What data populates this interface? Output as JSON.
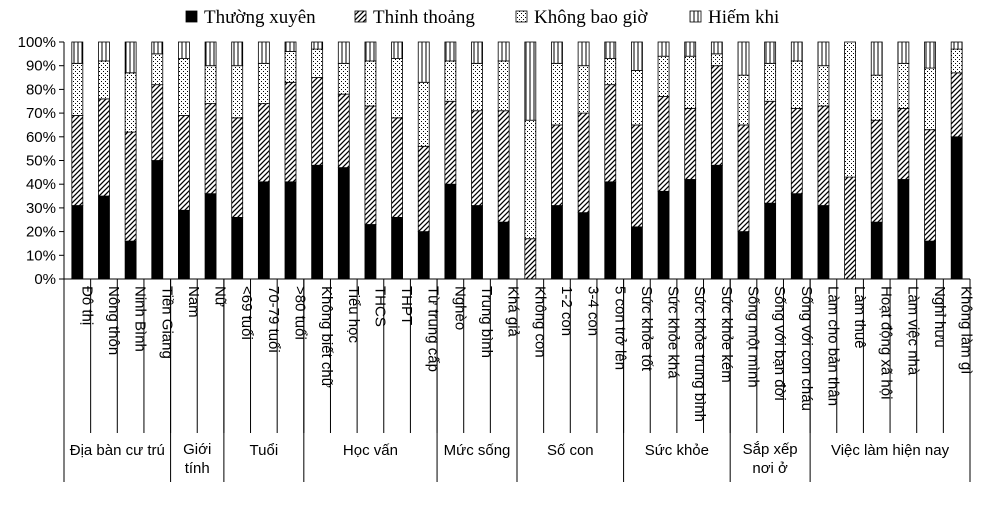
{
  "chart_data": {
    "type": "bar",
    "stacked": true,
    "percent": true,
    "title": "",
    "xlabel": "",
    "ylabel": "",
    "ylim": [
      0,
      100
    ],
    "yticks": [
      "0%",
      "10%",
      "20%",
      "30%",
      "40%",
      "50%",
      "60%",
      "70%",
      "80%",
      "90%",
      "100%"
    ],
    "grid": false,
    "legend": "top",
    "categories": [
      "Đô thị",
      "Nông thôn",
      "Ninh Bình",
      "Tiền Giang",
      "Nam",
      "Nữ",
      "<69 tuổi",
      "70-79 tuổi",
      ">80 tuổi",
      "Không biết chữ",
      "Tiểu học",
      "THCS",
      "THPT",
      "Từ trung cấp",
      "Nghèo",
      "Trung bình",
      "Khá giả",
      "Không con",
      "1-2 con",
      "3-4 con",
      "5 con trở lên",
      "Sức khỏe tốt",
      "Sức khỏe khá",
      "Sức khỏe trung bình",
      "Sức khỏe kém",
      "Sống một mình",
      "Sống với bạn đời",
      "Sống với con cháu",
      "Làm cho bản thân",
      "Làm thuê",
      "Hoạt động xã hội",
      "Làm việc nhà",
      "Nghỉ hưu",
      "Không làm gì"
    ],
    "groups": [
      {
        "label_lines": [
          "Địa bàn cư trú"
        ],
        "count": 4
      },
      {
        "label_lines": [
          "Giới",
          "tính"
        ],
        "count": 2
      },
      {
        "label_lines": [
          "Tuổi"
        ],
        "count": 3
      },
      {
        "label_lines": [
          "Học vấn"
        ],
        "count": 5
      },
      {
        "label_lines": [
          "Mức sống"
        ],
        "count": 3
      },
      {
        "label_lines": [
          "Số con"
        ],
        "count": 4
      },
      {
        "label_lines": [
          "Sức khỏe"
        ],
        "count": 4
      },
      {
        "label_lines": [
          "Sắp xếp",
          "nơi ở"
        ],
        "count": 3
      },
      {
        "label_lines": [
          "Việc làm hiện nay"
        ],
        "count": 6
      }
    ],
    "series": [
      {
        "name": "Thường xuyên",
        "fill": "solid",
        "values": [
          31,
          35,
          16,
          50,
          29,
          36,
          26,
          41,
          41,
          48,
          47,
          23,
          26,
          20,
          40,
          31,
          24,
          0,
          31,
          28,
          41,
          22,
          37,
          42,
          48,
          20,
          32,
          36,
          31,
          0,
          24,
          42,
          16,
          60
        ]
      },
      {
        "name": "Thỉnh thoảng",
        "fill": "hatch",
        "values": [
          38,
          41,
          46,
          32,
          40,
          38,
          42,
          33,
          42,
          37,
          31,
          50,
          42,
          36,
          35,
          40,
          47,
          17,
          34,
          42,
          41,
          43,
          40,
          30,
          42,
          45,
          43,
          36,
          42,
          43,
          43,
          30,
          47,
          27
        ]
      },
      {
        "name": "Không bao giờ",
        "fill": "dots",
        "values": [
          22,
          16,
          25,
          13,
          24,
          16,
          22,
          17,
          13,
          12,
          13,
          19,
          25,
          27,
          17,
          20,
          21,
          50,
          26,
          20,
          11,
          23,
          17,
          22,
          5,
          21,
          16,
          20,
          17,
          57,
          19,
          19,
          26,
          10
        ]
      },
      {
        "name": "Hiếm khi",
        "fill": "vlines",
        "values": [
          9,
          8,
          13,
          5,
          7,
          10,
          10,
          9,
          4,
          3,
          9,
          8,
          7,
          17,
          8,
          9,
          8,
          33,
          9,
          10,
          7,
          12,
          6,
          6,
          5,
          14,
          9,
          8,
          10,
          0,
          14,
          9,
          11,
          3
        ]
      }
    ]
  }
}
